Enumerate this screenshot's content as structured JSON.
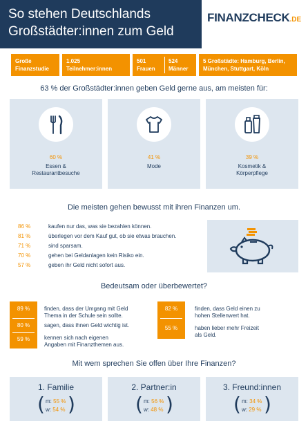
{
  "header": {
    "title_line1": "So stehen Deutschlands",
    "title_line2": "Großstädter:innen zum Geld",
    "logo_main": "FINANZCHECK",
    "logo_suffix": ".DE"
  },
  "info": {
    "study_line1": "Große",
    "study_line2": "Finanzstudie",
    "participants_line1": "1.025",
    "participants_line2": "Teilnehmer:innen",
    "women_count": "501",
    "women_label": "Frauen",
    "men_count": "524",
    "men_label": "Männer",
    "cities_line1": "5 Großstädte: Hamburg, Berlin,",
    "cities_line2": "München, Stuttgart, Köln"
  },
  "spending": {
    "title": "63 % der Großstädter:innen geben Geld gerne aus, am meisten für:",
    "items": [
      {
        "icon": "cutlery-icon",
        "pct": "60 %",
        "label_line1": "Essen &",
        "label_line2": "Restaurantbesuche"
      },
      {
        "icon": "tshirt-icon",
        "pct": "41 %",
        "label_line1": "Mode",
        "label_line2": ""
      },
      {
        "icon": "cosmetics-icon",
        "pct": "39 %",
        "label_line1": "Kosmetik &",
        "label_line2": "Körperpflege"
      }
    ]
  },
  "finance": {
    "title": "Die meisten gehen bewusst mit ihren Finanzen um.",
    "rows": [
      {
        "pct": "86 %",
        "text": "kaufen nur das, was sie bezahlen können."
      },
      {
        "pct": "81 %",
        "text": "überlegen vor dem Kauf gut, ob sie etwas brauchen."
      },
      {
        "pct": "71 %",
        "text": "sind sparsam."
      },
      {
        "pct": "70 %",
        "text": "gehen bei Geldanlagen kein Risiko ein."
      },
      {
        "pct": "57 %",
        "text": "geben ihr Geld nicht sofort aus."
      }
    ],
    "icon": "piggy-bank-icon"
  },
  "importance": {
    "title": "Bedeutsam oder überbewertet?",
    "left": [
      {
        "pct": "89 %",
        "line1": "finden, dass der Umgang mit Geld",
        "line2": "Thema in der Schule sein sollte."
      },
      {
        "pct": "80 %",
        "line1": "sagen, dass ihnen Geld wichtig ist.",
        "line2": ""
      },
      {
        "pct": "59 %",
        "line1": "kennen sich nach eigenen",
        "line2": "Angaben mit Finanzthemen aus."
      }
    ],
    "right": [
      {
        "pct": "82 %",
        "line1": "finden, dass Geld einen zu",
        "line2": "hohen Stellenwert hat."
      },
      {
        "pct": "55 %",
        "line1": "haben lieber mehr Freizeit",
        "line2": "als Geld."
      }
    ]
  },
  "openness": {
    "title": "Mit wem sprechen Sie offen über Ihre Finanzen?",
    "items": [
      {
        "label": "1. Familie",
        "m_label": "m:",
        "m": "55 %",
        "w_label": "w:",
        "w": "54 %"
      },
      {
        "label": "2. Partner:in",
        "m_label": "m:",
        "m": "56 %",
        "w_label": "w:",
        "w": "48 %"
      },
      {
        "label": "3. Freund:innen",
        "m_label": "m:",
        "m": "34 %",
        "w_label": "w:",
        "w": "29 %"
      }
    ]
  },
  "colors": {
    "navy": "#1f3b5c",
    "orange": "#f39200",
    "light_blue": "#dde6ef"
  }
}
